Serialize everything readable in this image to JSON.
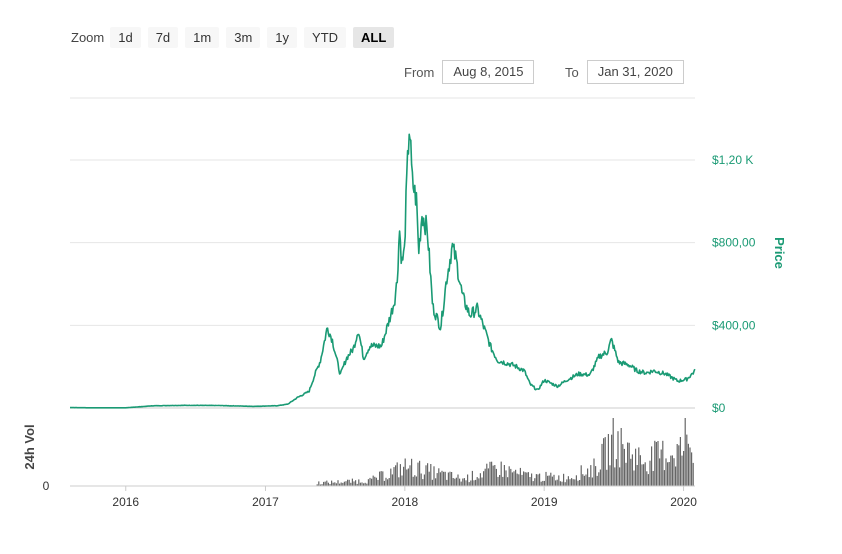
{
  "zoom": {
    "label": "Zoom",
    "buttons": [
      "1d",
      "7d",
      "1m",
      "3m",
      "1y",
      "YTD",
      "ALL"
    ],
    "active": "ALL"
  },
  "range": {
    "from_label": "From",
    "from_value": "Aug 8, 2015",
    "to_label": "To",
    "to_value": "Jan 31, 2020"
  },
  "colors": {
    "price_line": "#1a9a74",
    "volume_bars": "#666666",
    "grid": "#e6e6e6"
  },
  "chart_data": [
    {
      "type": "line",
      "title": "",
      "ylabel": "Price",
      "xlim": [
        "2015-08-08",
        "2020-01-31"
      ],
      "ylim": [
        0,
        1500
      ],
      "y_ticks": [
        0,
        400,
        800,
        1200
      ],
      "y_tick_labels": [
        "$0",
        "$400,00",
        "$800,00",
        "$1,20 K"
      ],
      "x_tick_labels": [
        "2016",
        "2017",
        "2018",
        "2019",
        "2020"
      ],
      "x_tick_dates": [
        "2016-01-01",
        "2017-01-01",
        "2018-01-01",
        "2019-01-01",
        "2020-01-01"
      ],
      "grid": true,
      "series": [
        {
          "x": [
            "2015-08-08",
            "2015-10-01",
            "2016-01-01",
            "2016-03-15",
            "2016-06-15",
            "2016-09-01",
            "2016-12-01",
            "2017-02-01",
            "2017-03-01",
            "2017-03-25",
            "2017-04-25",
            "2017-05-10",
            "2017-05-25",
            "2017-06-12",
            "2017-06-25",
            "2017-07-16",
            "2017-08-01",
            "2017-08-20",
            "2017-09-01",
            "2017-09-15",
            "2017-10-01",
            "2017-11-01",
            "2017-11-25",
            "2017-12-05",
            "2017-12-12",
            "2017-12-18",
            "2017-12-24",
            "2017-12-31",
            "2018-01-05",
            "2018-01-13",
            "2018-01-20",
            "2018-02-01",
            "2018-02-06",
            "2018-02-15",
            "2018-03-01",
            "2018-03-15",
            "2018-04-05",
            "2018-04-20",
            "2018-05-05",
            "2018-05-15",
            "2018-06-01",
            "2018-06-20",
            "2018-07-10",
            "2018-07-25",
            "2018-08-15",
            "2018-09-01",
            "2018-09-20",
            "2018-10-15",
            "2018-11-10",
            "2018-11-25",
            "2018-12-15",
            "2019-01-01",
            "2019-02-05",
            "2019-03-01",
            "2019-04-01",
            "2019-05-01",
            "2019-05-25",
            "2019-06-15",
            "2019-06-26",
            "2019-07-15",
            "2019-08-10",
            "2019-09-01",
            "2019-09-25",
            "2019-10-15",
            "2019-11-15",
            "2019-12-17",
            "2020-01-10",
            "2020-01-31"
          ],
          "y": [
            2,
            1,
            1,
            11,
            13,
            12,
            8,
            11,
            19,
            50,
            80,
            160,
            230,
            390,
            330,
            160,
            240,
            290,
            380,
            240,
            300,
            300,
            450,
            520,
            620,
            870,
            700,
            760,
            1050,
            1380,
            1100,
            1000,
            750,
            940,
            860,
            490,
            390,
            620,
            780,
            720,
            540,
            450,
            480,
            400,
            290,
            230,
            220,
            205,
            180,
            115,
            85,
            135,
            105,
            135,
            165,
            160,
            250,
            270,
            330,
            220,
            210,
            180,
            170,
            180,
            165,
            130,
            140,
            180
          ]
        }
      ]
    },
    {
      "type": "bar",
      "ylabel": "24h Vol",
      "y_tick_labels": [
        "0"
      ],
      "x": [
        "2015-08-08",
        "2017-06-01",
        "2017-10-01",
        "2018-01-05",
        "2018-06-01",
        "2018-08-30",
        "2018-11-20",
        "2019-03-01",
        "2019-05-15",
        "2019-06-28",
        "2019-09-15",
        "2019-11-01",
        "2020-01-20",
        "2020-01-31"
      ],
      "values": [
        0,
        6,
        10,
        35,
        12,
        32,
        17,
        15,
        33,
        80,
        45,
        55,
        70,
        90
      ],
      "ylim": [
        0,
        100
      ]
    }
  ]
}
